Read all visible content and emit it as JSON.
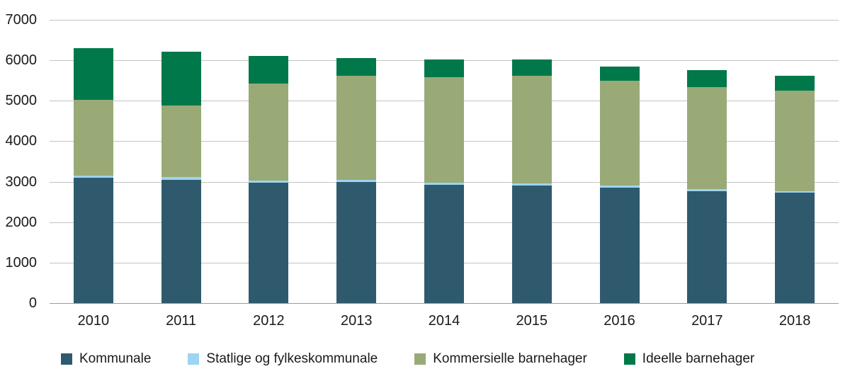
{
  "chart_data": {
    "type": "bar",
    "stacked": true,
    "title": "",
    "xlabel": "",
    "ylabel": "",
    "ylim": [
      0,
      7000
    ],
    "ytick_step": 1000,
    "yticks": [
      "0",
      "1000",
      "2000",
      "3000",
      "4000",
      "5000",
      "6000",
      "7000"
    ],
    "grid": "horizontal",
    "legend_position": "bottom",
    "categories": [
      "2010",
      "2011",
      "2012",
      "2013",
      "2014",
      "2015",
      "2016",
      "2017",
      "2018"
    ],
    "series": [
      {
        "name": "Kommunale",
        "color": "#2f5a6e",
        "values": [
          3090,
          3050,
          2980,
          3000,
          2920,
          2910,
          2860,
          2770,
          2730
        ]
      },
      {
        "name": "Statlige og fylkeskommunale",
        "color": "#9dd4f1",
        "values": [
          60,
          60,
          50,
          50,
          50,
          50,
          40,
          40,
          40
        ]
      },
      {
        "name": "Kommersielle barnehager",
        "color": "#99aa77",
        "values": [
          1870,
          1780,
          2400,
          2560,
          2610,
          2650,
          2590,
          2530,
          2480
        ]
      },
      {
        "name": "Ideelle barnehager",
        "color": "#00784a",
        "values": [
          1280,
          1320,
          680,
          450,
          440,
          410,
          360,
          410,
          370
        ]
      }
    ]
  }
}
